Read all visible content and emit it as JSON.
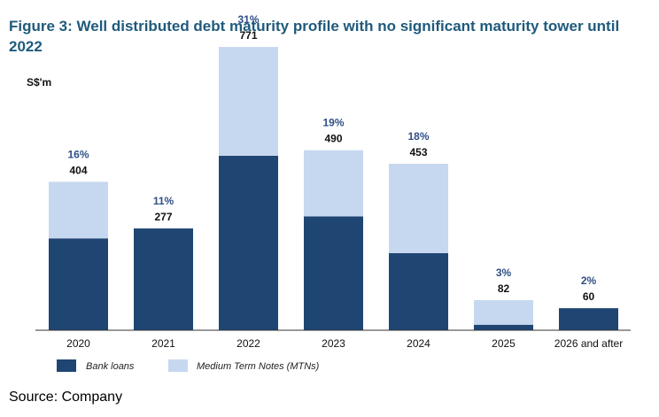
{
  "title": "Figure 3: Well distributed debt maturity profile with no significant maturity tower until 2022",
  "source": "Source: Company",
  "chart_data": {
    "type": "bar",
    "stacked": true,
    "unit_label": "S$'m",
    "categories": [
      "2020",
      "2021",
      "2022",
      "2023",
      "2024",
      "2025",
      "2026 and after"
    ],
    "totals": [
      404,
      277,
      771,
      490,
      453,
      82,
      60
    ],
    "percent_labels": [
      "16%",
      "11%",
      "31%",
      "19%",
      "18%",
      "3%",
      "2%"
    ],
    "series": [
      {
        "name": "Bank loans",
        "color": "#1f4573",
        "values": [
          250,
          277,
          475,
          310,
          210,
          15,
          60
        ]
      },
      {
        "name": "Medium Term Notes (MTNs)",
        "color": "#c6d8ef",
        "values": [
          154,
          0,
          296,
          180,
          243,
          67,
          0
        ]
      }
    ],
    "ylim": [
      0,
      800
    ],
    "grid": false,
    "legend_position": "bottom-left"
  }
}
